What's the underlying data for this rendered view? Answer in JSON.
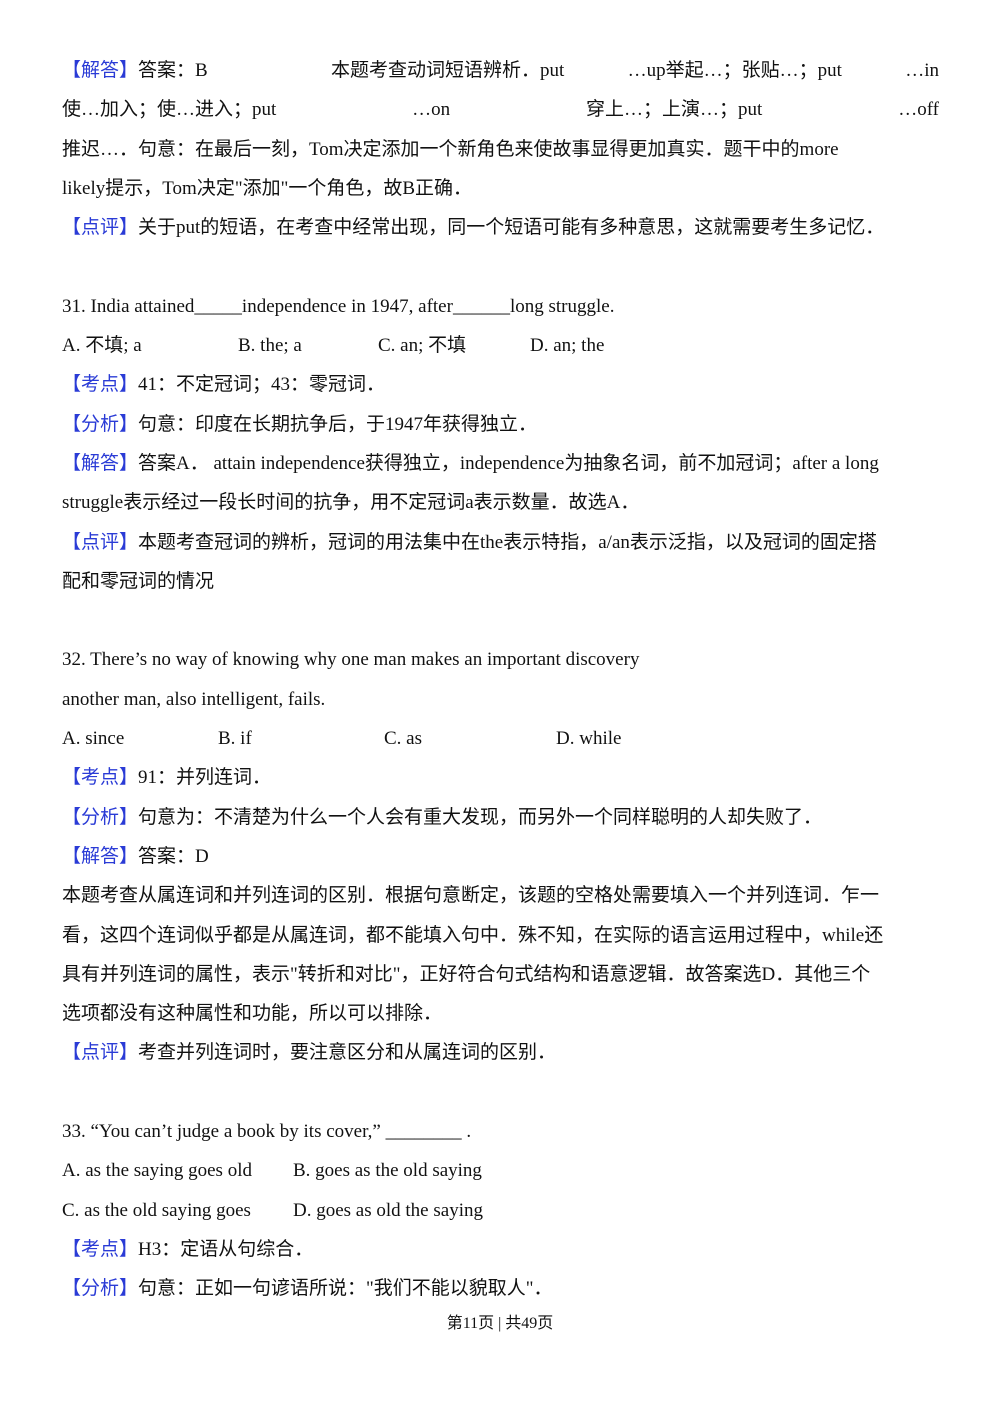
{
  "tag_color": "#2a3bd6",
  "prev": {
    "answer_tag": "【解答】",
    "answer_l1": [
      "答案：B",
      "本题考查动词短语辨析．put",
      "…up举起…；张贴…；put",
      "…in"
    ],
    "answer_l2": [
      "使…加入；使…进入；put",
      "…on",
      "穿上…；上演…；put",
      "…off"
    ],
    "answer_l3": "推迟…．句意：在最后一刻，Tom决定添加一个新角色来使故事显得更加真实．题干中的more",
    "answer_l4": "likely提示，Tom决定\"添加\"一个角色，故B正确．",
    "comment_tag": "【点评】",
    "comment": "关于put的短语，在考查中经常出现，同一个短语可能有多种意思，这就需要考生多记忆．"
  },
  "q31": {
    "question": "31. India attained_____independence in 1947, after______long struggle.",
    "options": [
      "A. 不填; a",
      "B. the; a",
      "C. an; 不填",
      "D. an; the"
    ],
    "point_tag": "【考点】",
    "point": "41：不定冠词；43：零冠词．",
    "analysis_tag": "【分析】",
    "analysis": "句意：印度在长期抗争后，于1947年获得独立．",
    "answer_tag": "【解答】",
    "answer_l1": "答案A．  attain independence获得独立，independence为抽象名词，前不加冠词；after a long",
    "answer_l2": "struggle表示经过一段长时间的抗争，用不定冠词a表示数量．故选A．",
    "comment_tag": "【点评】",
    "comment_l1": "本题考查冠词的辨析，冠词的用法集中在the表示特指，a/an表示泛指，以及冠词的固定搭",
    "comment_l2": "配和零冠词的情况"
  },
  "q32": {
    "question_l1": "32. There’s no way of knowing why one man makes an important discovery",
    "question_l2": "another man, also intelligent, fails.",
    "options": [
      "A. since",
      "B. if",
      "C. as",
      "D. while"
    ],
    "point_tag": "【考点】",
    "point": "91：并列连词．",
    "analysis_tag": "【分析】",
    "analysis": "句意为：不清楚为什么一个人会有重大发现，而另外一个同样聪明的人却失败了．",
    "answer_tag": "【解答】",
    "answer": "答案：D",
    "explain": [
      "本题考查从属连词和并列连词的区别．根据句意断定，该题的空格处需要填入一个并列连词．乍一",
      "看，这四个连词似乎都是从属连词，都不能填入句中．殊不知，在实际的语言运用过程中，while还",
      "具有并列连词的属性，表示\"转折和对比\"，正好符合句式结构和语意逻辑．故答案选D．其他三个",
      "选项都没有这种属性和功能，所以可以排除．"
    ],
    "comment_tag": "【点评】",
    "comment": "考查并列连词时，要注意区分和从属连词的区别．"
  },
  "q33": {
    "question": "33. “You can’t judge a book by its cover,” ________ .",
    "options": [
      "A. as the saying goes old",
      "B. goes as the old saying",
      "C. as the old saying goes",
      "D. goes as old the saying"
    ],
    "point_tag": "【考点】",
    "point": "H3：定语从句综合．",
    "analysis_tag": "【分析】",
    "analysis": "句意：正如一句谚语所说：\"我们不能以貌取人\"．"
  },
  "footer": "第11页 | 共49页"
}
